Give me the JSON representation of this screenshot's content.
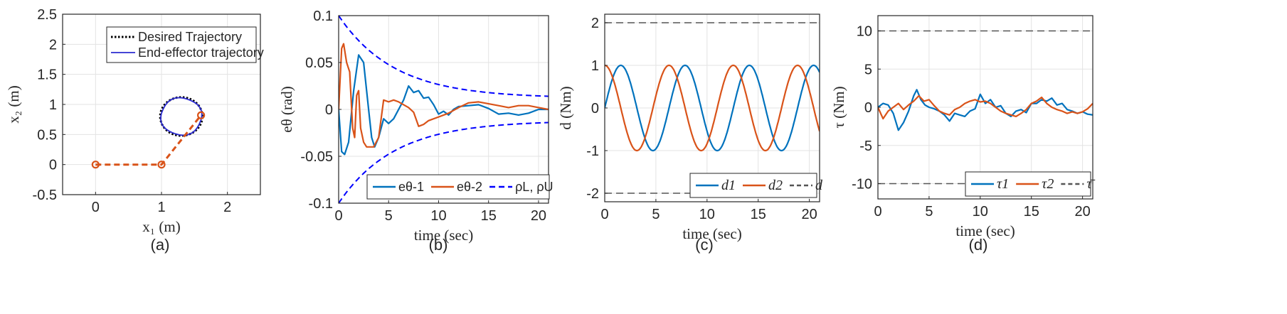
{
  "chart_data": [
    {
      "type": "line",
      "caption": "(a)",
      "xlabel": "x₁ (m)",
      "ylabel": "x₂ (m)",
      "xlim": [
        -0.5,
        2.5
      ],
      "ylim": [
        -0.5,
        2.5
      ],
      "xticks": [
        0,
        1,
        2
      ],
      "yticks": [
        -0.5,
        0,
        0.5,
        1,
        1.5,
        2,
        2.5
      ],
      "xtick_labels": [
        "0",
        "1",
        "2"
      ],
      "ytick_labels": [
        "-0.5",
        "0",
        "0.5",
        "1",
        "1.5",
        "2",
        "2.5"
      ],
      "grid": true,
      "legend_position": "top-right",
      "series": [
        {
          "name": "Desired Trajectory",
          "kind": "circle",
          "center": [
            1.3,
            0.8
          ],
          "radius": 0.32,
          "color": "#000000",
          "style": "dotted"
        },
        {
          "name": "End-effector trajectory",
          "kind": "circle",
          "center": [
            1.3,
            0.8
          ],
          "radius": 0.31,
          "color": "#2b2bd1",
          "style": "solid"
        },
        {
          "name": "",
          "kind": "arm-link",
          "x": [
            0,
            1,
            1.6
          ],
          "y": [
            0,
            0,
            0.82
          ],
          "color": "#d95319",
          "style": "dashed"
        }
      ]
    },
    {
      "type": "line",
      "caption": "(b)",
      "xlabel": "time (sec)",
      "ylabel": "eθ (rad)",
      "xlim": [
        0,
        21
      ],
      "ylim": [
        -0.1,
        0.1
      ],
      "xticks": [
        0,
        5,
        10,
        15,
        20
      ],
      "yticks": [
        -0.1,
        -0.05,
        0,
        0.05,
        0.1
      ],
      "xtick_labels": [
        "0",
        "5",
        "10",
        "15",
        "20"
      ],
      "ytick_labels": [
        "-0.1",
        "-0.05",
        "0",
        "0.05",
        "0.1"
      ],
      "grid": true,
      "legend_position": "bottom",
      "series": [
        {
          "name": "eθ-1",
          "color": "#0072bd",
          "style": "solid",
          "x": [
            0,
            0.3,
            0.6,
            1.0,
            1.5,
            2.0,
            2.5,
            3.0,
            3.3,
            3.6,
            4.0,
            4.5,
            5.0,
            5.5,
            6.0,
            6.5,
            7.0,
            7.5,
            8.0,
            8.5,
            9.0,
            9.5,
            10.0,
            10.5,
            11.0,
            11.5,
            12.0,
            13.0,
            14.0,
            15.0,
            16.0,
            17.0,
            18.0,
            19.0,
            20.0,
            21.0
          ],
          "y": [
            0,
            -0.045,
            -0.048,
            -0.035,
            0.02,
            0.058,
            0.05,
            0.0,
            -0.03,
            -0.04,
            -0.03,
            -0.01,
            -0.015,
            -0.01,
            0.0,
            0.01,
            0.025,
            0.018,
            0.02,
            0.012,
            0.013,
            0.005,
            -0.005,
            -0.002,
            -0.006,
            0.0,
            0.003,
            0.004,
            0.005,
            0.001,
            -0.005,
            -0.004,
            -0.006,
            -0.004,
            0.0,
            0.0
          ]
        },
        {
          "name": "eθ-2",
          "color": "#d95319",
          "style": "solid",
          "x": [
            0,
            0.3,
            0.5,
            0.8,
            1.1,
            1.4,
            1.6,
            1.8,
            2.0,
            2.2,
            2.5,
            2.8,
            3.1,
            3.5,
            4.0,
            4.5,
            5.0,
            5.5,
            6.0,
            6.5,
            7.0,
            7.5,
            8.0,
            8.5,
            9.0,
            10.0,
            11.0,
            12.0,
            13.0,
            14.0,
            15.0,
            16.0,
            17.0,
            18.0,
            19.0,
            20.0,
            21.0
          ],
          "y": [
            0,
            0.065,
            0.07,
            0.05,
            0.04,
            -0.02,
            -0.03,
            0.015,
            0.02,
            -0.02,
            -0.035,
            -0.04,
            -0.04,
            -0.04,
            -0.03,
            0.01,
            0.008,
            0.01,
            0.008,
            0.005,
            0.002,
            -0.003,
            -0.018,
            -0.016,
            -0.012,
            -0.008,
            -0.004,
            0.002,
            0.007,
            0.008,
            0.006,
            0.004,
            0.002,
            0.004,
            0.004,
            0.002,
            0.0
          ]
        },
        {
          "name": "ρL, ρU",
          "color": "#0000ff",
          "style": "dashed",
          "kind": "envelope",
          "rho0": 0.1,
          "rho_inf": 0.012,
          "decay": 0.18
        }
      ]
    },
    {
      "type": "line",
      "caption": "(c)",
      "xlabel": "time (sec)",
      "ylabel": "d (Nm)",
      "xlim": [
        0,
        21
      ],
      "ylim": [
        -2.2,
        2.2
      ],
      "xticks": [
        0,
        5,
        10,
        15,
        20
      ],
      "yticks": [
        -2,
        -1,
        0,
        1,
        2
      ],
      "xtick_labels": [
        "0",
        "5",
        "10",
        "15",
        "20"
      ],
      "ytick_labels": [
        "-2",
        "-1",
        "0",
        "1",
        "2"
      ],
      "grid": true,
      "legend_position": "bottom-right",
      "series": [
        {
          "name": "d1",
          "color": "#0072bd",
          "style": "solid",
          "kind": "sine",
          "amplitude": 1,
          "omega": 1,
          "phase": 0
        },
        {
          "name": "d2",
          "color": "#d95319",
          "style": "solid",
          "kind": "cosine",
          "amplitude": 1,
          "omega": 1,
          "phase": 0
        },
        {
          "name": "d",
          "color": "#555555",
          "style": "dashed",
          "kind": "bound",
          "levels": [
            2,
            -2
          ]
        }
      ]
    },
    {
      "type": "line",
      "caption": "(d)",
      "xlabel": "time (sec)",
      "ylabel": "τ (Nm)",
      "xlim": [
        0,
        21
      ],
      "ylim": [
        -12,
        12
      ],
      "xticks": [
        0,
        5,
        10,
        15,
        20
      ],
      "yticks": [
        -10,
        -5,
        0,
        5,
        10
      ],
      "xtick_labels": [
        "0",
        "5",
        "10",
        "15",
        "20"
      ],
      "ytick_labels": [
        "-10",
        "-5",
        "0",
        "5",
        "10"
      ],
      "grid": true,
      "legend_position": "bottom-right",
      "series": [
        {
          "name": "τ1",
          "color": "#0072bd",
          "style": "solid",
          "x": [
            0,
            0.5,
            1.0,
            1.5,
            2.0,
            2.5,
            3.0,
            3.5,
            3.8,
            4.2,
            4.6,
            5.0,
            5.5,
            6.0,
            6.5,
            7.0,
            7.5,
            8.0,
            8.5,
            9.0,
            9.5,
            10.0,
            10.5,
            11.0,
            11.5,
            12.0,
            12.5,
            13.0,
            13.5,
            14.0,
            14.5,
            15.0,
            15.5,
            16.0,
            16.5,
            17.0,
            17.5,
            18.0,
            18.5,
            19.0,
            19.5,
            20.0,
            20.5,
            21.0
          ],
          "y": [
            0,
            0.5,
            0.3,
            -0.8,
            -3.0,
            -2.0,
            -0.5,
            1.5,
            2.3,
            1.0,
            0.3,
            0.0,
            -0.2,
            -0.5,
            -1.0,
            -1.8,
            -0.8,
            -1.0,
            -1.2,
            -0.5,
            -0.2,
            1.7,
            0.5,
            1.0,
            0.0,
            0.2,
            -0.8,
            -1.2,
            -0.5,
            -0.3,
            -0.7,
            0.5,
            0.5,
            1.0,
            0.8,
            1.2,
            0.3,
            0.5,
            -0.3,
            -0.5,
            -0.8,
            -0.6,
            -0.9,
            -1.0
          ]
        },
        {
          "name": "τ2",
          "color": "#d95319",
          "style": "solid",
          "x": [
            0,
            0.5,
            1.0,
            1.5,
            2.0,
            2.5,
            3.0,
            3.5,
            4.0,
            4.5,
            5.0,
            5.5,
            6.0,
            6.5,
            7.0,
            7.5,
            8.0,
            8.5,
            9.0,
            9.5,
            10.0,
            10.5,
            11.0,
            11.5,
            12.0,
            12.5,
            13.0,
            13.5,
            14.0,
            14.5,
            15.0,
            15.5,
            16.0,
            16.5,
            17.0,
            17.5,
            18.0,
            18.5,
            19.0,
            19.5,
            20.0,
            20.5,
            21.0
          ],
          "y": [
            0,
            -1.5,
            -0.5,
            0.0,
            0.5,
            -0.3,
            0.3,
            0.8,
            1.5,
            0.8,
            1.0,
            0.2,
            -0.5,
            -0.8,
            -1.0,
            -0.3,
            0.0,
            0.5,
            0.8,
            1.0,
            0.7,
            0.8,
            0.5,
            0.0,
            -0.5,
            -0.8,
            -1.0,
            -1.2,
            -0.8,
            -0.3,
            0.5,
            0.8,
            1.3,
            0.5,
            0.0,
            -0.3,
            -0.5,
            -0.8,
            -0.6,
            -0.8,
            -0.6,
            -0.2,
            0.5
          ]
        },
        {
          "name": "τ̄",
          "color": "#555555",
          "style": "dashed",
          "kind": "bound",
          "levels": [
            10,
            -10
          ]
        }
      ]
    }
  ]
}
